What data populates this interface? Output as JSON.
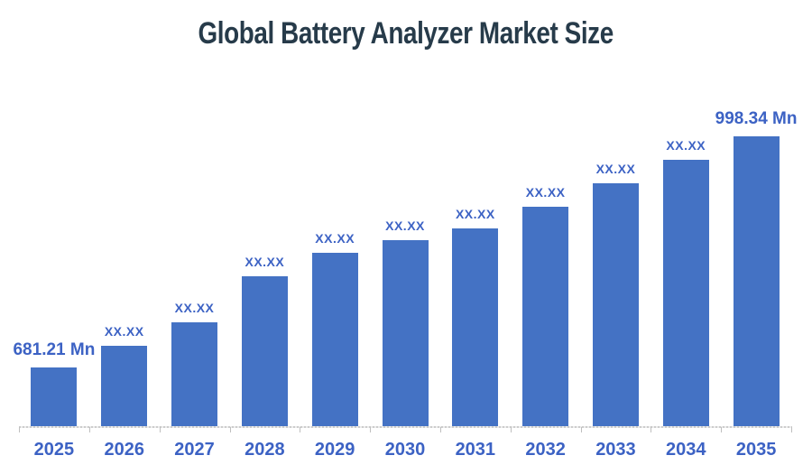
{
  "colors": {
    "bar": "#4472C4",
    "value_label": "#3C62C4",
    "title": "#273B4A",
    "axis_line": "#D6D6D6",
    "tick": "#BFBFBF",
    "background": "#FFFFFF"
  },
  "chart_data": {
    "type": "bar",
    "title": "Global Battery Analyzer Market Size",
    "categories": [
      "2025",
      "2026",
      "2027",
      "2028",
      "2029",
      "2030",
      "2031",
      "2032",
      "2033",
      "2034",
      "2035"
    ],
    "values": [
      681.21,
      711,
      744,
      807,
      839,
      856,
      872,
      902,
      934,
      967,
      998.34
    ],
    "value_labels": [
      "681.21 Mn",
      "XX.XX",
      "XX.XX",
      "XX.XX",
      "XX.XX",
      "XX.XX",
      "XX.XX",
      "XX.XX",
      "XX.XX",
      "XX.XX",
      "998.34 Mn"
    ],
    "unit": "Mn",
    "xlabel": "",
    "ylabel": "",
    "ylim": [
      600,
      1037
    ],
    "grid": false,
    "legend": false,
    "y_axis_visible": false,
    "x_axis_visible": true
  }
}
